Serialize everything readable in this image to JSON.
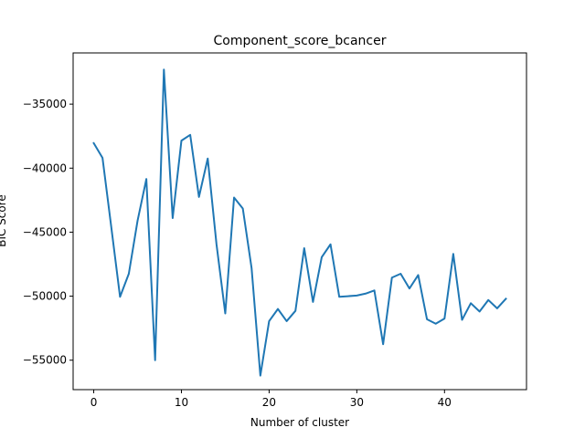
{
  "chart_data": {
    "type": "line",
    "title": "Component_score_bcancer",
    "xlabel": "Number of cluster",
    "ylabel": "BIC Score",
    "xlim": [
      -2.35,
      49.35
    ],
    "ylim": [
      -57300,
      -31000
    ],
    "xticks": [
      0,
      10,
      20,
      30,
      40
    ],
    "yticks": [
      -55000,
      -50000,
      -45000,
      -40000,
      -35000
    ],
    "xtick_labels": [
      "0",
      "10",
      "20",
      "30",
      "40"
    ],
    "ytick_labels": [
      "−55000",
      "−50000",
      "−45000",
      "−40000",
      "−35000"
    ],
    "grid": false,
    "series": [
      {
        "color": "#1f77b4",
        "x": [
          0,
          1,
          2,
          3,
          4,
          5,
          6,
          7,
          8,
          9,
          10,
          11,
          12,
          13,
          14,
          15,
          16,
          17,
          18,
          19,
          20,
          21,
          22,
          23,
          24,
          25,
          26,
          27,
          28,
          29,
          30,
          31,
          32,
          33,
          34,
          35,
          36,
          37,
          38,
          39,
          40,
          41,
          42,
          43,
          44,
          45,
          46,
          47
        ],
        "y": [
          -38050,
          -39200,
          -44600,
          -50050,
          -48250,
          -44100,
          -40850,
          -55000,
          -32300,
          -43900,
          -37850,
          -37400,
          -42250,
          -39250,
          -45950,
          -51350,
          -42300,
          -43150,
          -47800,
          -56200,
          -51950,
          -51000,
          -51950,
          -51150,
          -46250,
          -50450,
          -46950,
          -45950,
          -50050,
          -50000,
          -49950,
          -49800,
          -49550,
          -53750,
          -48550,
          -48250,
          -49400,
          -48350,
          -51800,
          -52150,
          -51750,
          -46700,
          -51850,
          -50550,
          -51200,
          -50300,
          -50950,
          -50200
        ]
      }
    ]
  }
}
